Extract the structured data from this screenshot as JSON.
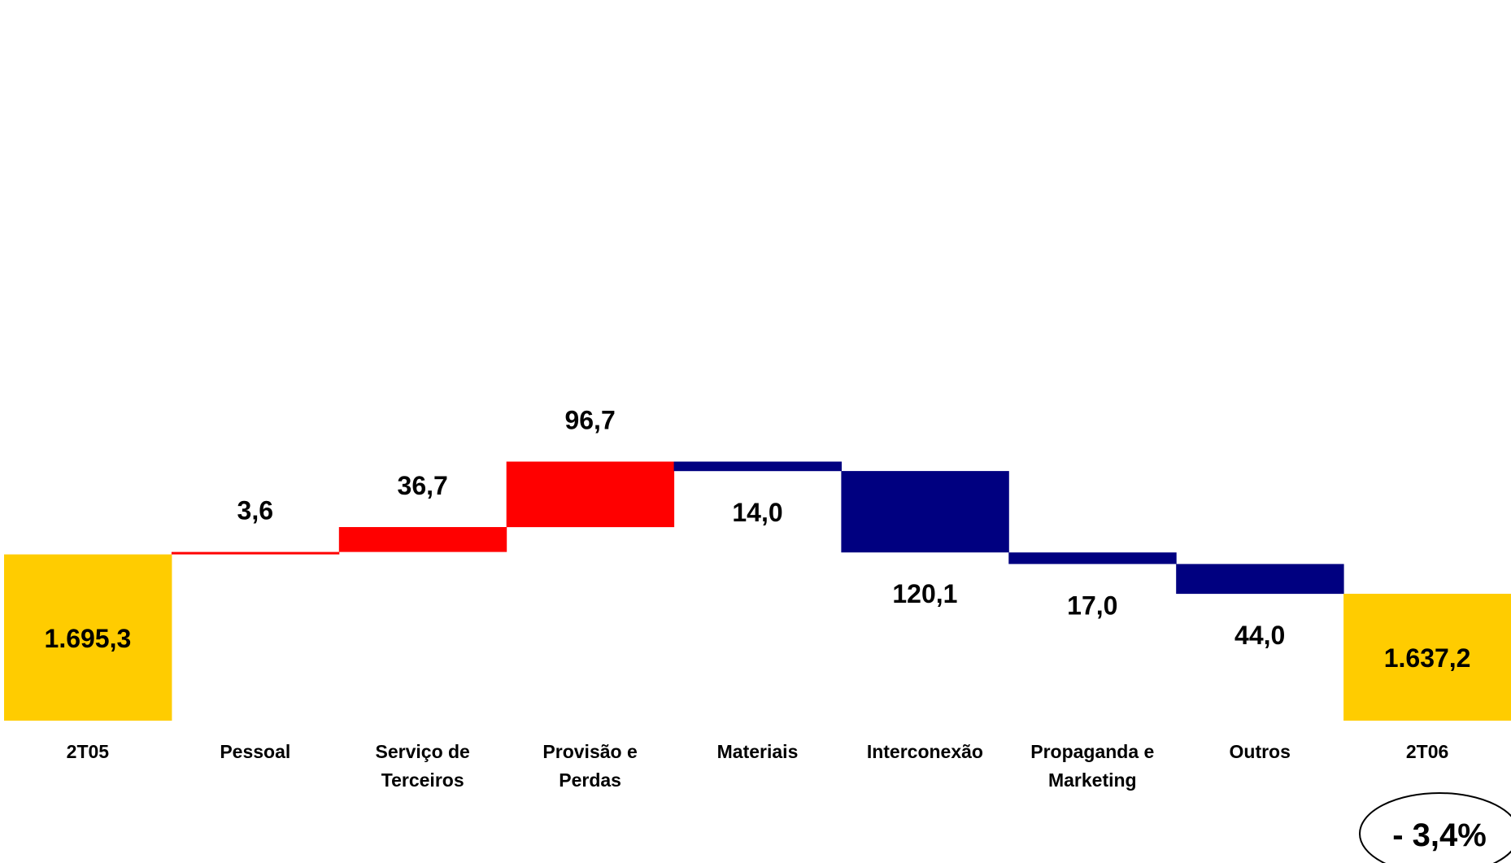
{
  "chart_data": {
    "type": "bar",
    "subtype": "waterfall",
    "categories": [
      "2T05",
      "Pessoal",
      "Serviço de Terceiros",
      "Provisão e Perdas",
      "Materiais",
      "Interconexão",
      "Propaganda e Marketing",
      "Outros",
      "2T06"
    ],
    "category_lines": [
      [
        "2T05"
      ],
      [
        "Pessoal"
      ],
      [
        "Serviço de",
        "Terceiros"
      ],
      [
        "Provisão e",
        "Perdas"
      ],
      [
        "Materiais"
      ],
      [
        "Interconexão"
      ],
      [
        "Propaganda e",
        "Marketing"
      ],
      [
        "Outros"
      ],
      [
        "2T06"
      ]
    ],
    "values": [
      1695.3,
      3.6,
      36.7,
      96.7,
      -14.0,
      -120.1,
      -17.0,
      -44.0,
      1637.2
    ],
    "kinds": [
      "total",
      "increase",
      "increase",
      "increase",
      "decrease",
      "decrease",
      "decrease",
      "decrease",
      "total"
    ],
    "value_labels": [
      "1.695,3",
      "3,6",
      "36,7",
      "96,7",
      "14,0",
      "120,1",
      "17,0",
      "44,0",
      "1.637,2"
    ],
    "colors": {
      "total": "#FFCC00",
      "increase": "#FF0000",
      "decrease": "#000080"
    },
    "annotation": "- 3,4%",
    "title": "",
    "xlabel": "",
    "ylabel": "",
    "grid": false,
    "legend": "none"
  }
}
